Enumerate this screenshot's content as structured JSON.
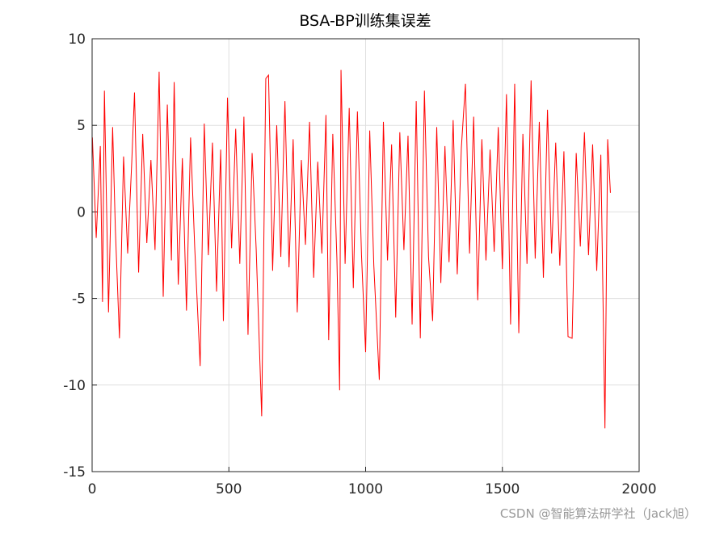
{
  "chart_data": {
    "type": "line",
    "title": "BSA-BP训练集误差",
    "x": [
      1,
      15,
      30,
      38,
      45,
      60,
      75,
      85,
      100,
      115,
      130,
      145,
      155,
      170,
      185,
      200,
      215,
      230,
      245,
      260,
      275,
      290,
      300,
      315,
      330,
      345,
      360,
      375,
      395,
      410,
      425,
      440,
      455,
      470,
      480,
      495,
      510,
      525,
      540,
      555,
      570,
      585,
      600,
      620,
      635,
      645,
      660,
      675,
      690,
      705,
      720,
      735,
      750,
      765,
      780,
      795,
      810,
      825,
      840,
      855,
      865,
      880,
      895,
      905,
      910,
      925,
      940,
      955,
      970,
      985,
      1000,
      1015,
      1030,
      1050,
      1065,
      1080,
      1095,
      1110,
      1125,
      1140,
      1155,
      1170,
      1185,
      1200,
      1215,
      1230,
      1245,
      1260,
      1275,
      1290,
      1305,
      1320,
      1335,
      1350,
      1365,
      1380,
      1395,
      1410,
      1425,
      1440,
      1455,
      1470,
      1485,
      1500,
      1515,
      1530,
      1545,
      1560,
      1575,
      1590,
      1605,
      1620,
      1635,
      1650,
      1665,
      1680,
      1695,
      1710,
      1725,
      1740,
      1755,
      1770,
      1785,
      1800,
      1815,
      1830,
      1845,
      1860,
      1875,
      1885,
      1895
    ],
    "series": [
      {
        "color": "#ff0000",
        "values": [
          4.3,
          -1.5,
          3.8,
          -5.2,
          7.0,
          -5.8,
          4.9,
          -1.0,
          -7.3,
          3.2,
          -2.4,
          2.9,
          6.9,
          -3.5,
          4.5,
          -1.8,
          3.0,
          -2.2,
          8.1,
          -4.9,
          6.2,
          -2.8,
          7.5,
          -4.2,
          3.1,
          -5.7,
          4.3,
          -2.0,
          -8.9,
          5.1,
          -2.5,
          4.0,
          -4.6,
          3.6,
          -6.3,
          6.6,
          -2.1,
          4.8,
          -3.0,
          5.5,
          -7.1,
          3.4,
          -2.2,
          -11.8,
          7.7,
          7.9,
          -3.4,
          5.0,
          -2.6,
          6.4,
          -3.2,
          4.2,
          -5.8,
          3.0,
          -1.9,
          5.2,
          -3.8,
          2.9,
          -2.4,
          5.6,
          -7.4,
          4.5,
          -2.7,
          -10.3,
          8.2,
          -3.0,
          6.0,
          -4.4,
          5.8,
          -2.5,
          -8.1,
          4.7,
          -3.1,
          -9.7,
          5.2,
          -2.8,
          3.9,
          -6.1,
          4.6,
          -2.2,
          4.4,
          -6.5,
          6.4,
          -7.3,
          7.0,
          -2.6,
          -6.3,
          4.9,
          -4.1,
          3.8,
          -2.9,
          5.3,
          -3.6,
          3.7,
          7.4,
          -2.4,
          5.5,
          -5.1,
          4.2,
          -2.8,
          3.6,
          -2.3,
          4.9,
          -3.3,
          6.8,
          -6.5,
          7.4,
          -7.0,
          4.5,
          -3.0,
          7.6,
          -2.7,
          5.2,
          -3.8,
          5.9,
          -2.4,
          4.0,
          -3.1,
          3.5,
          -7.2,
          -7.3,
          3.4,
          -2.0,
          4.6,
          -2.5,
          3.9,
          -3.4,
          3.3,
          -12.5,
          4.2,
          1.1
        ]
      }
    ],
    "xlim": [
      0,
      2000
    ],
    "xticks": [
      0,
      500,
      1000,
      1500,
      2000
    ],
    "ylim": [
      -15,
      10
    ],
    "yticks": [
      -15,
      -10,
      -5,
      0,
      5,
      10
    ],
    "grid": true
  },
  "watermark": "CSDN @智能算法研学社（Jack旭）"
}
